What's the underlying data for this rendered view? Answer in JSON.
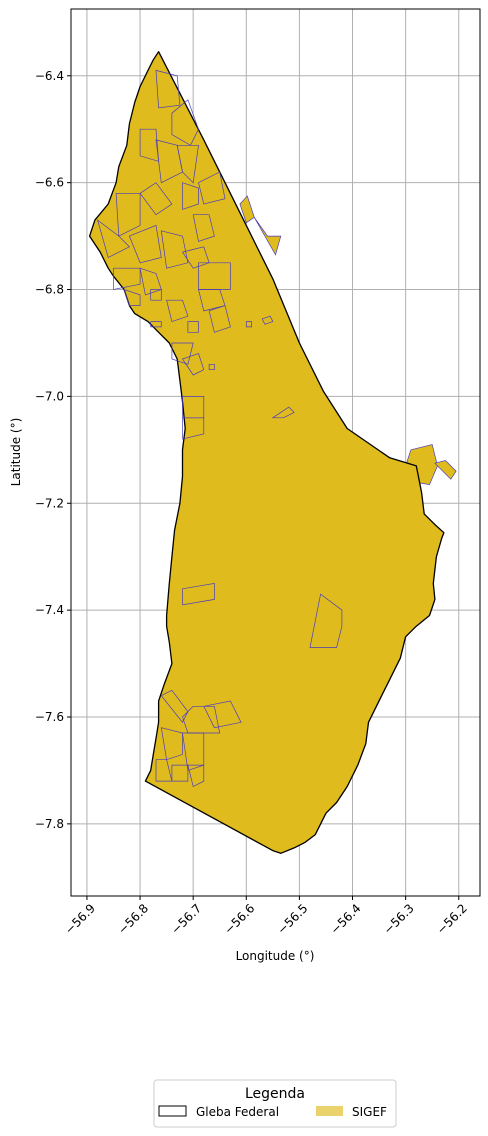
{
  "chart_data": {
    "type": "map",
    "xlabel": "Longitude (°)",
    "ylabel": "Latitude (°)",
    "xlim": [
      -56.93,
      -56.16
    ],
    "ylim": [
      -7.935,
      -6.275
    ],
    "x_ticks": [
      -56.9,
      -56.8,
      -56.7,
      -56.6,
      -56.5,
      -56.4,
      -56.3,
      -56.2
    ],
    "x_tick_labels": [
      "−56.9",
      "−56.8",
      "−56.7",
      "−56.6",
      "−56.5",
      "−56.4",
      "−56.3",
      "−56.2"
    ],
    "y_ticks": [
      -6.4,
      -6.6,
      -6.8,
      -7.0,
      -7.2,
      -7.4,
      -7.6,
      -7.8
    ],
    "y_tick_labels": [
      "−6.4",
      "−6.6",
      "−6.8",
      "−7.0",
      "−7.2",
      "−7.4",
      "−7.6",
      "−7.8"
    ],
    "grid": true,
    "colors": {
      "sigef_fill": "#dfbb1e",
      "gleba_edge": "#000000",
      "parcel_edge": "#4b3dbb",
      "grid": "#b0b0b0"
    },
    "gleba_boundary": [
      [
        -56.765,
        -6.355
      ],
      [
        -56.68,
        -6.52
      ],
      [
        -56.6,
        -6.68
      ],
      [
        -56.55,
        -6.78
      ],
      [
        -56.5,
        -6.9
      ],
      [
        -56.455,
        -6.99
      ],
      [
        -56.41,
        -7.06
      ],
      [
        -56.33,
        -7.115
      ],
      [
        -56.28,
        -7.13
      ],
      [
        -56.27,
        -7.18
      ],
      [
        -56.265,
        -7.22
      ],
      [
        -56.245,
        -7.24
      ],
      [
        -56.228,
        -7.255
      ],
      [
        -56.232,
        -7.265
      ],
      [
        -56.242,
        -7.3
      ],
      [
        -56.248,
        -7.35
      ],
      [
        -56.245,
        -7.38
      ],
      [
        -56.255,
        -7.41
      ],
      [
        -56.28,
        -7.43
      ],
      [
        -56.3,
        -7.45
      ],
      [
        -56.31,
        -7.49
      ],
      [
        -56.33,
        -7.53
      ],
      [
        -56.345,
        -7.56
      ],
      [
        -56.355,
        -7.58
      ],
      [
        -56.37,
        -7.61
      ],
      [
        -56.375,
        -7.65
      ],
      [
        -56.39,
        -7.69
      ],
      [
        -56.41,
        -7.73
      ],
      [
        -56.43,
        -7.76
      ],
      [
        -56.45,
        -7.78
      ],
      [
        -56.46,
        -7.8
      ],
      [
        -56.47,
        -7.82
      ],
      [
        -56.49,
        -7.835
      ],
      [
        -56.51,
        -7.845
      ],
      [
        -56.535,
        -7.855
      ],
      [
        -56.55,
        -7.85
      ],
      [
        -56.79,
        -7.72
      ],
      [
        -56.78,
        -7.7
      ],
      [
        -56.775,
        -7.67
      ],
      [
        -56.77,
        -7.64
      ],
      [
        -56.765,
        -7.61
      ],
      [
        -56.765,
        -7.57
      ],
      [
        -56.755,
        -7.54
      ],
      [
        -56.74,
        -7.5
      ],
      [
        -56.745,
        -7.46
      ],
      [
        -56.75,
        -7.43
      ],
      [
        -56.75,
        -7.41
      ],
      [
        -56.745,
        -7.35
      ],
      [
        -56.74,
        -7.3
      ],
      [
        -56.735,
        -7.25
      ],
      [
        -56.725,
        -7.2
      ],
      [
        -56.72,
        -7.15
      ],
      [
        -56.72,
        -7.1
      ],
      [
        -56.715,
        -7.06
      ],
      [
        -56.72,
        -7.01
      ],
      [
        -56.725,
        -6.97
      ],
      [
        -56.73,
        -6.93
      ],
      [
        -56.745,
        -6.9
      ],
      [
        -56.765,
        -6.88
      ],
      [
        -56.785,
        -6.86
      ],
      [
        -56.81,
        -6.845
      ],
      [
        -56.82,
        -6.83
      ],
      [
        -56.83,
        -6.8
      ],
      [
        -56.85,
        -6.775
      ],
      [
        -56.86,
        -6.76
      ],
      [
        -56.875,
        -6.73
      ],
      [
        -56.895,
        -6.7
      ],
      [
        -56.885,
        -6.67
      ],
      [
        -56.86,
        -6.64
      ],
      [
        -56.845,
        -6.6
      ],
      [
        -56.84,
        -6.57
      ],
      [
        -56.825,
        -6.53
      ],
      [
        -56.82,
        -6.49
      ],
      [
        -56.81,
        -6.45
      ],
      [
        -56.8,
        -6.42
      ],
      [
        -56.785,
        -6.39
      ],
      [
        -56.775,
        -6.37
      ],
      [
        -56.765,
        -6.355
      ]
    ],
    "sigef_outlier_parcels": [
      [
        [
          -56.612,
          -6.64
        ],
        [
          -56.598,
          -6.625
        ],
        [
          -56.585,
          -6.665
        ],
        [
          -56.6,
          -6.675
        ]
      ],
      [
        [
          -56.585,
          -6.665
        ],
        [
          -56.56,
          -6.7
        ],
        [
          -56.535,
          -6.7
        ],
        [
          -56.545,
          -6.735
        ]
      ],
      [
        [
          -56.29,
          -7.1
        ],
        [
          -56.25,
          -7.09
        ],
        [
          -56.24,
          -7.13
        ],
        [
          -56.255,
          -7.165
        ],
        [
          -56.285,
          -7.16
        ],
        [
          -56.3,
          -7.13
        ]
      ],
      [
        [
          -56.245,
          -7.125
        ],
        [
          -56.215,
          -7.155
        ],
        [
          -56.205,
          -7.14
        ],
        [
          -56.225,
          -7.12
        ]
      ]
    ],
    "sigef_parcels": [
      [
        [
          -56.77,
          -6.39
        ],
        [
          -56.73,
          -6.4
        ],
        [
          -56.725,
          -6.455
        ],
        [
          -56.765,
          -6.46
        ]
      ],
      [
        [
          -56.74,
          -6.47
        ],
        [
          -56.71,
          -6.445
        ],
        [
          -56.69,
          -6.5
        ],
        [
          -56.705,
          -6.53
        ],
        [
          -56.74,
          -6.51
        ]
      ],
      [
        [
          -56.8,
          -6.5
        ],
        [
          -56.77,
          -6.5
        ],
        [
          -56.765,
          -6.56
        ],
        [
          -56.8,
          -6.55
        ]
      ],
      [
        [
          -56.77,
          -6.52
        ],
        [
          -56.73,
          -6.53
        ],
        [
          -56.72,
          -6.58
        ],
        [
          -56.76,
          -6.6
        ]
      ],
      [
        [
          -56.73,
          -6.53
        ],
        [
          -56.69,
          -6.53
        ],
        [
          -56.7,
          -6.6
        ],
        [
          -56.72,
          -6.58
        ]
      ],
      [
        [
          -56.845,
          -6.62
        ],
        [
          -56.8,
          -6.62
        ],
        [
          -56.8,
          -6.68
        ],
        [
          -56.84,
          -6.7
        ]
      ],
      [
        [
          -56.8,
          -6.62
        ],
        [
          -56.77,
          -6.6
        ],
        [
          -56.74,
          -6.64
        ],
        [
          -56.77,
          -6.66
        ]
      ],
      [
        [
          -56.72,
          -6.6
        ],
        [
          -56.69,
          -6.61
        ],
        [
          -56.69,
          -6.64
        ],
        [
          -56.72,
          -6.65
        ]
      ],
      [
        [
          -56.69,
          -6.6
        ],
        [
          -56.65,
          -6.58
        ],
        [
          -56.64,
          -6.63
        ],
        [
          -56.68,
          -6.64
        ]
      ],
      [
        [
          -56.88,
          -6.67
        ],
        [
          -56.84,
          -6.7
        ],
        [
          -56.82,
          -6.72
        ],
        [
          -56.86,
          -6.74
        ]
      ],
      [
        [
          -56.82,
          -6.7
        ],
        [
          -56.77,
          -6.68
        ],
        [
          -56.76,
          -6.74
        ],
        [
          -56.8,
          -6.75
        ]
      ],
      [
        [
          -56.76,
          -6.69
        ],
        [
          -56.72,
          -6.7
        ],
        [
          -56.71,
          -6.75
        ],
        [
          -56.75,
          -6.76
        ]
      ],
      [
        [
          -56.7,
          -6.66
        ],
        [
          -56.67,
          -6.66
        ],
        [
          -56.66,
          -6.7
        ],
        [
          -56.69,
          -6.71
        ]
      ],
      [
        [
          -56.85,
          -6.76
        ],
        [
          -56.8,
          -6.76
        ],
        [
          -56.8,
          -6.79
        ],
        [
          -56.85,
          -6.8
        ]
      ],
      [
        [
          -56.8,
          -6.76
        ],
        [
          -56.77,
          -6.77
        ],
        [
          -56.76,
          -6.8
        ],
        [
          -56.79,
          -6.81
        ]
      ],
      [
        [
          -56.83,
          -6.8
        ],
        [
          -56.8,
          -6.81
        ],
        [
          -56.8,
          -6.83
        ],
        [
          -56.82,
          -6.83
        ]
      ],
      [
        [
          -56.78,
          -6.8
        ],
        [
          -56.76,
          -6.8
        ],
        [
          -56.76,
          -6.82
        ],
        [
          -56.78,
          -6.82
        ]
      ],
      [
        [
          -56.72,
          -6.73
        ],
        [
          -56.68,
          -6.72
        ],
        [
          -56.67,
          -6.75
        ],
        [
          -56.7,
          -6.76
        ]
      ],
      [
        [
          -56.69,
          -6.75
        ],
        [
          -56.63,
          -6.75
        ],
        [
          -56.63,
          -6.8
        ],
        [
          -56.69,
          -6.8
        ]
      ],
      [
        [
          -56.69,
          -6.8
        ],
        [
          -56.65,
          -6.8
        ],
        [
          -56.64,
          -6.83
        ],
        [
          -56.68,
          -6.84
        ]
      ],
      [
        [
          -56.75,
          -6.82
        ],
        [
          -56.72,
          -6.82
        ],
        [
          -56.71,
          -6.85
        ],
        [
          -56.74,
          -6.86
        ]
      ],
      [
        [
          -56.67,
          -6.84
        ],
        [
          -56.64,
          -6.83
        ],
        [
          -56.63,
          -6.87
        ],
        [
          -56.66,
          -6.88
        ]
      ],
      [
        [
          -56.71,
          -6.86
        ],
        [
          -56.69,
          -6.86
        ],
        [
          -56.69,
          -6.88
        ],
        [
          -56.71,
          -6.88
        ]
      ],
      [
        [
          -56.78,
          -6.86
        ],
        [
          -56.76,
          -6.86
        ],
        [
          -56.76,
          -6.87
        ],
        [
          -56.78,
          -6.87
        ]
      ],
      [
        [
          -56.74,
          -6.9
        ],
        [
          -56.7,
          -6.9
        ],
        [
          -56.71,
          -6.94
        ],
        [
          -56.74,
          -6.93
        ]
      ],
      [
        [
          -56.72,
          -6.93
        ],
        [
          -56.69,
          -6.92
        ],
        [
          -56.68,
          -6.95
        ],
        [
          -56.7,
          -6.96
        ]
      ],
      [
        [
          -56.6,
          -6.86
        ],
        [
          -56.59,
          -6.86
        ],
        [
          -56.59,
          -6.87
        ],
        [
          -56.6,
          -6.87
        ]
      ],
      [
        [
          -56.57,
          -6.855
        ],
        [
          -56.555,
          -6.85
        ],
        [
          -56.55,
          -6.86
        ],
        [
          -56.565,
          -6.865
        ]
      ],
      [
        [
          -56.67,
          -6.94
        ],
        [
          -56.66,
          -6.94
        ],
        [
          -56.66,
          -6.95
        ],
        [
          -56.67,
          -6.95
        ]
      ],
      [
        [
          -56.52,
          -7.02
        ],
        [
          -56.51,
          -7.03
        ],
        [
          -56.53,
          -7.04
        ],
        [
          -56.55,
          -7.04
        ]
      ],
      [
        [
          -56.72,
          -7.0
        ],
        [
          -56.68,
          -7.0
        ],
        [
          -56.68,
          -7.04
        ],
        [
          -56.72,
          -7.04
        ]
      ],
      [
        [
          -56.72,
          -7.04
        ],
        [
          -56.68,
          -7.04
        ],
        [
          -56.68,
          -7.07
        ],
        [
          -56.72,
          -7.08
        ]
      ],
      [
        [
          -56.72,
          -7.36
        ],
        [
          -56.66,
          -7.35
        ],
        [
          -56.66,
          -7.38
        ],
        [
          -56.72,
          -7.39
        ]
      ],
      [
        [
          -56.46,
          -7.37
        ],
        [
          -56.42,
          -7.4
        ],
        [
          -56.42,
          -7.43
        ],
        [
          -56.43,
          -7.47
        ],
        [
          -56.48,
          -7.47
        ]
      ],
      [
        [
          -56.76,
          -7.56
        ],
        [
          -56.74,
          -7.55
        ],
        [
          -56.71,
          -7.59
        ],
        [
          -56.72,
          -7.61
        ]
      ],
      [
        [
          -56.7,
          -7.58
        ],
        [
          -56.72,
          -7.6
        ],
        [
          -56.71,
          -7.63
        ],
        [
          -56.65,
          -7.63
        ],
        [
          -56.66,
          -7.58
        ]
      ],
      [
        [
          -56.68,
          -7.58
        ],
        [
          -56.63,
          -7.57
        ],
        [
          -56.61,
          -7.61
        ],
        [
          -56.66,
          -7.62
        ]
      ],
      [
        [
          -56.76,
          -7.62
        ],
        [
          -56.72,
          -7.63
        ],
        [
          -56.72,
          -7.67
        ],
        [
          -56.75,
          -7.68
        ]
      ],
      [
        [
          -56.72,
          -7.63
        ],
        [
          -56.68,
          -7.63
        ],
        [
          -56.68,
          -7.69
        ],
        [
          -56.71,
          -7.7
        ]
      ],
      [
        [
          -56.77,
          -7.68
        ],
        [
          -56.75,
          -7.68
        ],
        [
          -56.74,
          -7.72
        ],
        [
          -56.77,
          -7.72
        ]
      ],
      [
        [
          -56.74,
          -7.69
        ],
        [
          -56.71,
          -7.69
        ],
        [
          -56.71,
          -7.72
        ],
        [
          -56.74,
          -7.72
        ]
      ],
      [
        [
          -56.71,
          -7.69
        ],
        [
          -56.68,
          -7.69
        ],
        [
          -56.68,
          -7.72
        ],
        [
          -56.7,
          -7.73
        ]
      ]
    ],
    "legend": {
      "title": "Legenda",
      "entries": [
        {
          "label": "Gleba Federal",
          "style": "outline"
        },
        {
          "label": "SIGEF",
          "style": "fill"
        }
      ],
      "placement": "bottom-center"
    }
  }
}
